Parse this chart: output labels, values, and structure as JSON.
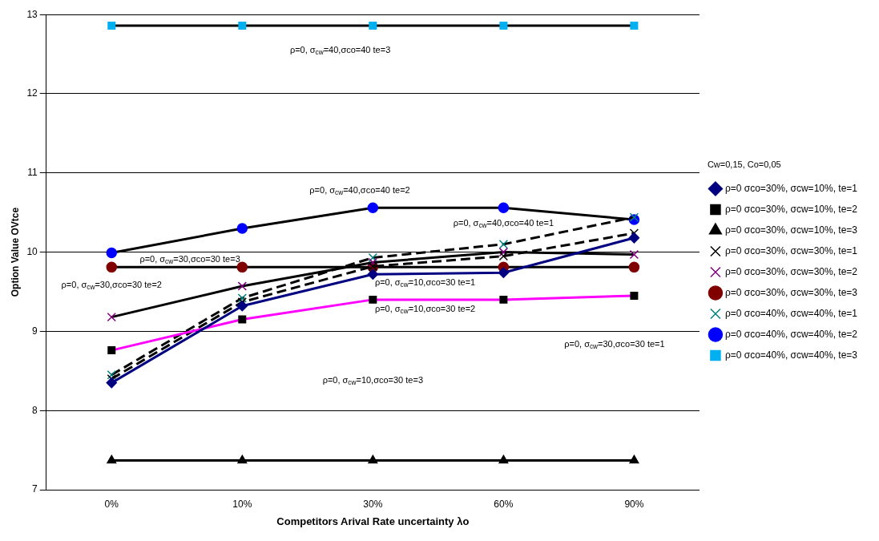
{
  "chart_data": {
    "type": "line",
    "xlabel": "Competitors Arival Rate uncertainty λo",
    "ylabel": "Option Value OVtce",
    "categories": [
      "0%",
      "10%",
      "30%",
      "60%",
      "90%"
    ],
    "ylim": [
      7,
      13
    ],
    "yticks": [
      7,
      8,
      9,
      10,
      11,
      12,
      13
    ],
    "grid": "y",
    "legend": "right",
    "series": [
      {
        "name": "ρ=0 σco=30%, σcw=10%, te=1",
        "color": "#000080",
        "marker": "diamond",
        "line_style": "solid",
        "values": [
          8.35,
          9.32,
          9.72,
          9.74,
          10.18
        ]
      },
      {
        "name": "ρ=0 σco=30%, σcw=10%, te=2",
        "color": "#ff00ff",
        "colors": [
          "#000000",
          "#000000",
          "#000000",
          "#000000",
          "#000000"
        ],
        "marker": "square",
        "line_style": "solid",
        "values": [
          8.76,
          9.15,
          9.4,
          9.4,
          9.45
        ]
      },
      {
        "name": "ρ=0 σco=30%, σcw=10%, te=3",
        "color": "#000000",
        "marker": "triangle",
        "line_style": "solid",
        "values": [
          7.37,
          7.37,
          7.37,
          7.37,
          7.37
        ]
      },
      {
        "name": "ρ=0 σco=30%, σcw=30%, te=1",
        "color": "#000000",
        "marker": "cross",
        "line_style": "dashed",
        "values": [
          8.4,
          9.37,
          9.82,
          9.95,
          10.24
        ]
      },
      {
        "name": "ρ=0 σco=30%, σcw=30%, te=2",
        "color": "#000000",
        "colors": [
          "#800080",
          "#800080",
          "#800080",
          "#800080",
          "#800080"
        ],
        "marker": "cross",
        "line_style": "solid",
        "values": [
          9.18,
          9.57,
          9.87,
          10.0,
          9.97
        ]
      },
      {
        "name": "ρ=0 σco=30%, σcw=30%, te=3",
        "color": "#000000",
        "colors": [
          "#800000",
          "#800000",
          "#800000",
          "#800000",
          "#800000"
        ],
        "marker": "circle",
        "line_style": "solid",
        "values": [
          9.81,
          9.81,
          9.81,
          9.81,
          9.81
        ]
      },
      {
        "name": "ρ=0 σco=40%, σcw=40%, te=1",
        "color": "#000000",
        "colors": [
          "#008080",
          "#008080",
          "#008080",
          "#008080",
          "#008080"
        ],
        "marker": "cross",
        "line_style": "dashed",
        "values": [
          8.45,
          9.42,
          9.93,
          10.1,
          10.44
        ]
      },
      {
        "name": "ρ=0 σco=40%, σcw=40%, te=2",
        "color": "#000000",
        "colors": [
          "#0000ff",
          "#0000ff",
          "#0000ff",
          "#0000ff",
          "#0000ff"
        ],
        "marker": "circle",
        "line_style": "solid",
        "values": [
          9.99,
          10.3,
          10.56,
          10.56,
          10.41
        ]
      },
      {
        "name": "ρ=0 σco=40%, σcw=40%, te=3",
        "color": "#000000",
        "colors": [
          "#00b0f0",
          "#00b0f0",
          "#00b0f0",
          "#00b0f0",
          "#00b0f0"
        ],
        "marker": "square",
        "line_style": "solid",
        "values": [
          12.86,
          12.86,
          12.86,
          12.86,
          12.86
        ]
      }
    ],
    "annotations": [
      "ρ=0, σ$_{cw}$=40,σco=40 te=3",
      "ρ=0, σ$_{cw}$=40,σco=40 te=2",
      "ρ=0, σ$_{cw}$=40,σco=40 te=1",
      "ρ=0, σ$_{cw}$=30,σco=30 te=3",
      "ρ=0, σ$_{cw}$=30,σco=30 te=2",
      "ρ=0, σ$_{cw}$=10,σco=30 te=1",
      "ρ=0, σ$_{cw}$=10,σco=30 te=2",
      "ρ=0, σ$_{cw}$=10,σco=30 te=3",
      "ρ=0, σ$_{cw}$=30,σco=30 te=1",
      "Cw=0,15, Co=0,05"
    ]
  }
}
